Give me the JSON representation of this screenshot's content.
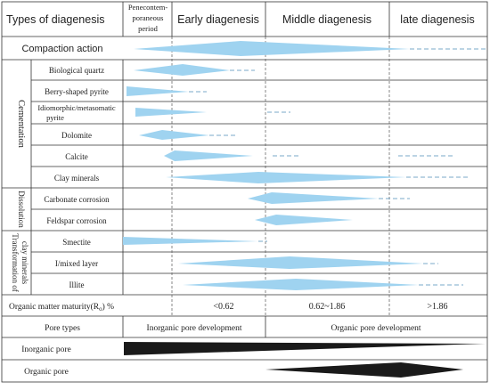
{
  "headers": {
    "types": "Types of diagenesis",
    "pene": [
      "Penecontem-",
      "poraneous",
      "period"
    ],
    "early": "Early diagenesis",
    "middle": "Middle diagenesis",
    "late": "late diagenesis"
  },
  "compaction": "Compaction action",
  "groups": {
    "cementation": "Cementation",
    "dissolution": "Dissolution",
    "transformation": [
      "Transformation of",
      "clay minerals"
    ]
  },
  "cementation_rows": [
    [
      "Biological quartz"
    ],
    [
      "Berry-shaped pyrite"
    ],
    [
      "Idiomorphic/metasomatic",
      "pyrite"
    ],
    [
      "Dolomite"
    ],
    [
      "Calcite"
    ],
    [
      "Clay minerals"
    ]
  ],
  "dissolution_rows": [
    [
      "Carbonate corrosion"
    ],
    [
      "Feldspar corrosion"
    ]
  ],
  "transformation_rows": [
    [
      "Smectite"
    ],
    [
      "I/mixed layer"
    ],
    [
      "Illite"
    ]
  ],
  "maturity": {
    "label_prefix": "Organic matter maturity(R",
    "label_sub": "o",
    "label_suffix": ") %",
    "values": [
      "<0.62",
      "0.62~1.86",
      ">1.86"
    ]
  },
  "pores": {
    "types_label": "Pore types",
    "inorganic_dev": "Inorganic pore development",
    "organic_dev": "Organic pore development",
    "inorganic_pore": "Inorganic pore",
    "organic_pore": "Organic pore"
  },
  "colors": {
    "spindle": "#9fd3f0",
    "pore": "#1a1a1a",
    "line": "#333333",
    "dash": "#777777"
  }
}
